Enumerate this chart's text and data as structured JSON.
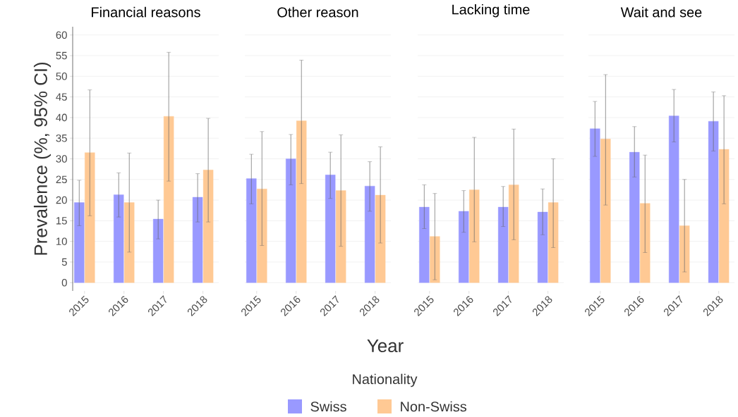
{
  "chart_data": [
    {
      "type": "bar",
      "title": "Financial reasons",
      "ylabel": "Prevalence (%, 95% CI)",
      "legend_title": "Nationality",
      "legend": "bottom",
      "grid": "y",
      "categories": [
        "2015",
        "2016",
        "2017",
        "2018"
      ],
      "ylim": [
        -2,
        62
      ],
      "yticks": [
        0,
        5,
        10,
        15,
        20,
        25,
        30,
        35,
        40,
        45,
        50,
        55,
        60
      ],
      "series": [
        {
          "name": "Swiss",
          "color": "#9999ff",
          "values": [
            19.4,
            21.3,
            15.4,
            20.7
          ],
          "errors": [
            [
              13.8,
              24.8
            ],
            [
              15.9,
              26.6
            ],
            [
              10.6,
              20.0
            ],
            [
              14.7,
              26.4
            ]
          ]
        },
        {
          "name": "Non-Swiss",
          "color": "#ffc994",
          "values": [
            31.5,
            19.4,
            40.3,
            27.3
          ],
          "errors": [
            [
              16.2,
              46.7
            ],
            [
              7.4,
              31.4
            ],
            [
              24.6,
              55.8
            ],
            [
              14.7,
              39.8
            ]
          ]
        }
      ]
    },
    {
      "type": "bar",
      "title": "Other reason",
      "xlabel": "Year",
      "grid": "y",
      "tick_labels": "x",
      "categories": [
        "2015",
        "2016",
        "2017",
        "2018"
      ],
      "ylim": [
        0,
        60
      ],
      "yticks": [
        0,
        5,
        10,
        15,
        20,
        25,
        30,
        35,
        40,
        45,
        50,
        55,
        60
      ],
      "series": [
        {
          "color": "#9999ff",
          "values": [
            25.2,
            30.0,
            26.1,
            23.4
          ],
          "errors": [
            [
              19.1,
              31.1
            ],
            [
              23.7,
              35.9
            ],
            [
              20.4,
              31.6
            ],
            [
              17.3,
              29.3
            ]
          ]
        },
        {
          "color": "#ffc994",
          "values": [
            22.7,
            39.2,
            22.3,
            21.2
          ],
          "errors": [
            [
              9.0,
              36.6
            ],
            [
              24.0,
              53.9
            ],
            [
              8.8,
              35.8
            ],
            [
              9.6,
              32.9
            ]
          ]
        }
      ]
    },
    {
      "type": "bar",
      "title": "Lacking time",
      "grid": "y",
      "tick_labels": "x",
      "categories": [
        "2015",
        "2016",
        "2017",
        "2018"
      ],
      "ylim": [
        0,
        60
      ],
      "yticks": [
        0,
        5,
        10,
        15,
        20,
        25,
        30,
        35,
        40,
        45,
        50,
        55,
        60
      ],
      "series": [
        {
          "color": "#9999ff",
          "values": [
            18.3,
            17.3,
            18.3,
            17.1
          ],
          "errors": [
            [
              13.1,
              23.7
            ],
            [
              12.2,
              22.3
            ],
            [
              13.6,
              23.3
            ],
            [
              11.6,
              22.7
            ]
          ]
        },
        {
          "color": "#ffc994",
          "values": [
            11.2,
            22.5,
            23.7,
            19.4
          ],
          "errors": [
            [
              0.7,
              21.6
            ],
            [
              9.9,
              35.2
            ],
            [
              10.4,
              37.2
            ],
            [
              8.5,
              30.0
            ]
          ]
        }
      ]
    },
    {
      "type": "bar",
      "title": "Wait and see",
      "grid": "y",
      "tick_labels": "x",
      "categories": [
        "2015",
        "2016",
        "2017",
        "2018"
      ],
      "ylim": [
        0,
        60
      ],
      "yticks": [
        0,
        5,
        10,
        15,
        20,
        25,
        30,
        35,
        40,
        45,
        50,
        55,
        60
      ],
      "series": [
        {
          "color": "#9999ff",
          "values": [
            37.3,
            31.6,
            40.4,
            39.1
          ],
          "errors": [
            [
              30.6,
              43.9
            ],
            [
              25.6,
              37.8
            ],
            [
              34.1,
              46.8
            ],
            [
              31.9,
              46.2
            ]
          ]
        },
        {
          "color": "#ffc994",
          "values": [
            34.8,
            19.2,
            13.8,
            32.3
          ],
          "errors": [
            [
              18.8,
              50.4
            ],
            [
              7.3,
              30.9
            ],
            [
              2.6,
              25.0
            ],
            [
              19.1,
              45.3
            ]
          ]
        }
      ]
    }
  ]
}
